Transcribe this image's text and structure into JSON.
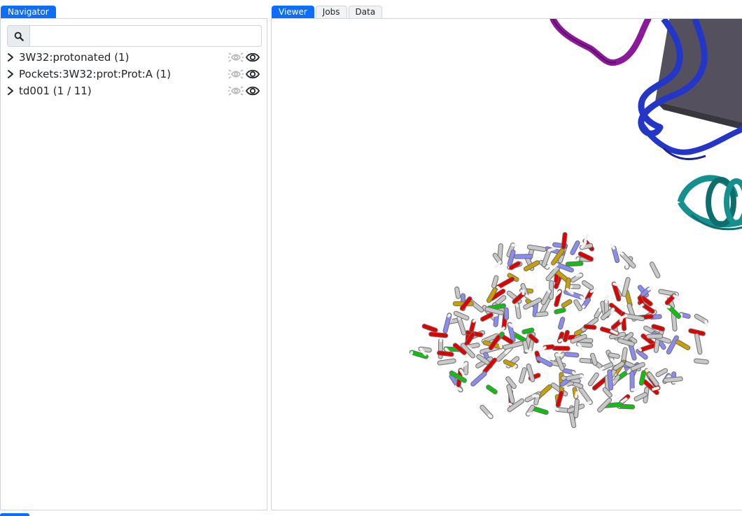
{
  "navigator": {
    "tab_label": "Navigator",
    "search": {
      "value": "",
      "placeholder": ""
    },
    "items": [
      {
        "label": "3W32:protonated (1)"
      },
      {
        "label": "Pockets:3W32:prot:Prot:A (1)"
      },
      {
        "label": "td001 (1 / 11)"
      }
    ]
  },
  "viewer_tabs": [
    {
      "label": "Viewer",
      "active": true
    },
    {
      "label": "Jobs",
      "active": false
    },
    {
      "label": "Data",
      "active": false
    }
  ],
  "colors": {
    "accent": "#0d6efd",
    "carbon": "#c8c8c8",
    "oxygen": "#e00000",
    "nitrogen": "#8c8cf0",
    "chlorine": "#10c010",
    "sulfur": "#c8a000",
    "ribbon_purple": "#8b1a9a",
    "ribbon_blue": "#2436c8",
    "ribbon_teal": "#15908e"
  },
  "icons": [
    "search-icon",
    "chevron-right-icon",
    "hide-others-icon",
    "eye-icon"
  ]
}
